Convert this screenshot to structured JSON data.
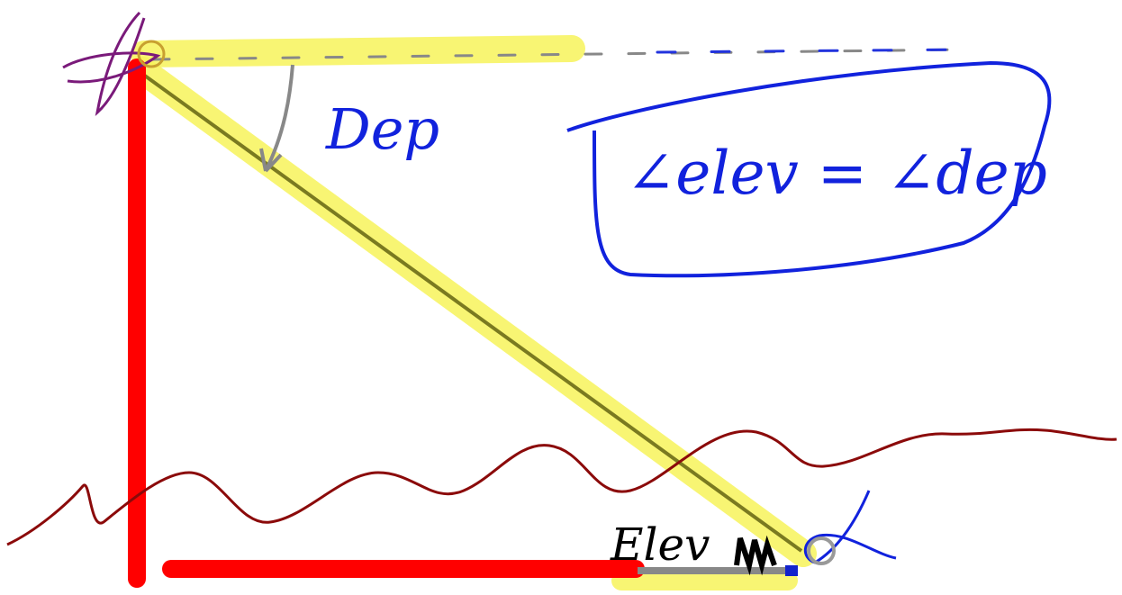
{
  "labels": {
    "depression": "Dep",
    "equation": "∠elev = ∠dep",
    "elevation": "Elev"
  }
}
